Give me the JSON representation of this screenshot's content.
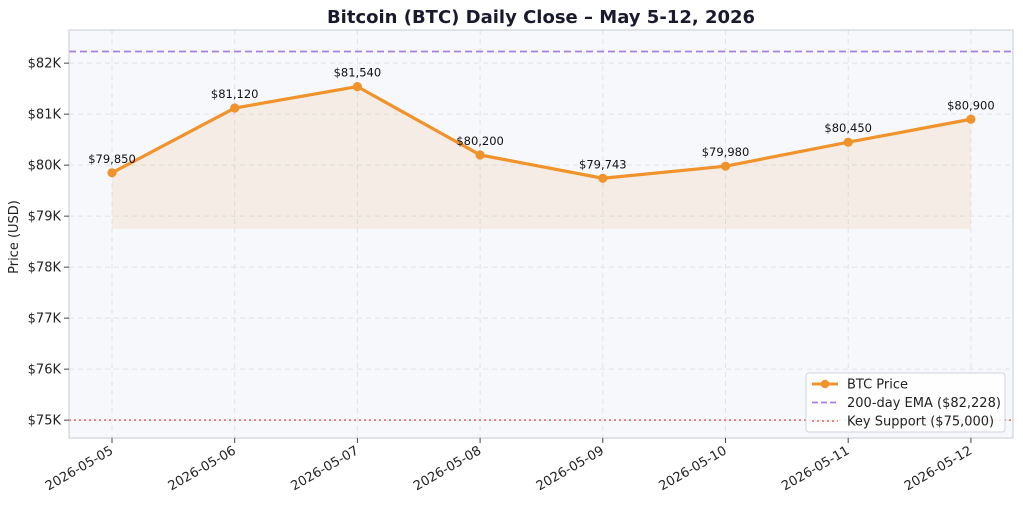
{
  "chart_data": {
    "type": "line",
    "title": "Bitcoin (BTC) Daily Close – May 5-12, 2026",
    "xlabel": "",
    "ylabel": "Price (USD)",
    "x": [
      "2026-05-05",
      "2026-05-06",
      "2026-05-07",
      "2026-05-08",
      "2026-05-09",
      "2026-05-10",
      "2026-05-11",
      "2026-05-12"
    ],
    "series": [
      {
        "name": "BTC Price",
        "values": [
          79850,
          81120,
          81540,
          80200,
          79743,
          79980,
          80450,
          80900
        ],
        "labels": [
          "$79,850",
          "$81,120",
          "$81,540",
          "$80,200",
          "$79,743",
          "$79,980",
          "$80,450",
          "$80,900"
        ],
        "color": "#f0932b"
      }
    ],
    "fill_baseline": 78750,
    "reference_lines": [
      {
        "name": "200-day EMA ($82,228)",
        "value": 82228,
        "style": "dashed",
        "color": "#a77fe0"
      },
      {
        "name": "Key Support ($75,000)",
        "value": 75000,
        "style": "dotted",
        "color": "#e57373"
      }
    ],
    "ylim": [
      74650,
      82650
    ],
    "yticks": [
      75000,
      76000,
      77000,
      78000,
      79000,
      80000,
      81000,
      82000
    ],
    "ytick_labels": [
      "$75K",
      "$76K",
      "$77K",
      "$78K",
      "$79K",
      "$80K",
      "$81K",
      "$82K"
    ],
    "grid": true,
    "legend_position": "bottom-right"
  }
}
